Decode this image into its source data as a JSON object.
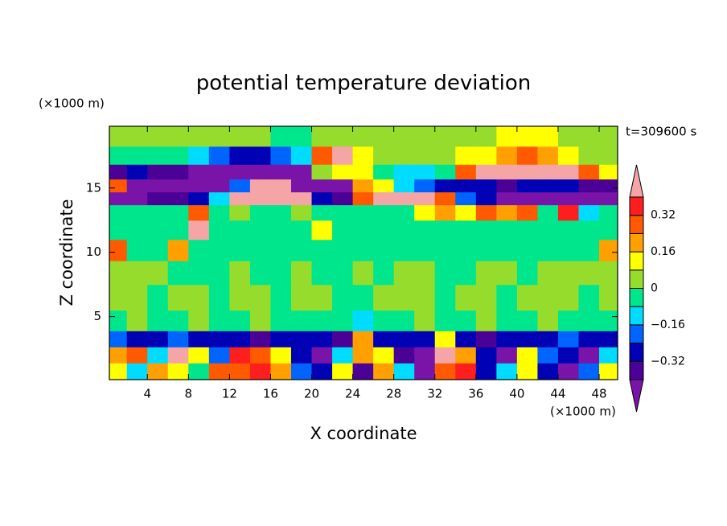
{
  "chart_data": {
    "type": "contour",
    "title": "potential temperature deviation",
    "x_label": "X coordinate",
    "y_label": "Z coordinate",
    "x_unit": "(×1000 m)",
    "y_unit": "(×1000 m)",
    "annotation": "t=309600 s",
    "xlim": [
      0.3,
      49.8
    ],
    "ylim": [
      0.1,
      19.8
    ],
    "xticks": [
      4,
      8,
      12,
      16,
      20,
      24,
      28,
      32,
      36,
      40,
      44,
      48
    ],
    "yticks": [
      5,
      10,
      15
    ],
    "x": [
      1,
      3,
      5,
      7,
      9,
      11,
      13,
      15,
      17,
      19,
      21,
      23,
      25,
      27,
      29,
      31,
      33,
      35,
      37,
      39,
      41,
      43,
      45,
      47,
      49
    ],
    "y": [
      0.8,
      2.0,
      3.3,
      4.5,
      6.5,
      8.5,
      10.2,
      11.8,
      13.2,
      14.2,
      15.2,
      16.2,
      17.5,
      19.0
    ],
    "values": [
      [
        0.1,
        -0.1,
        0.2,
        0.1,
        -0.05,
        0.3,
        0.25,
        0.35,
        0.2,
        -0.2,
        -0.3,
        0.1,
        -0.35,
        0.2,
        -0.1,
        -0.45,
        0.3,
        0.35,
        -0.3,
        -0.1,
        0.1,
        -0.3,
        -0.45,
        -0.2,
        0.1
      ],
      [
        0.2,
        0.3,
        -0.1,
        0.45,
        0.1,
        -0.2,
        0.35,
        0.3,
        0.1,
        -0.3,
        -0.45,
        -0.1,
        0.2,
        0.1,
        -0.35,
        -0.45,
        0.45,
        0.2,
        -0.3,
        -0.45,
        0.1,
        -0.2,
        -0.3,
        -0.45,
        -0.1
      ],
      [
        -0.2,
        -0.3,
        -0.25,
        -0.2,
        -0.3,
        -0.25,
        -0.3,
        -0.35,
        -0.3,
        -0.25,
        -0.3,
        -0.35,
        0.2,
        -0.3,
        -0.25,
        -0.3,
        0.1,
        -0.3,
        -0.35,
        -0.3,
        -0.25,
        -0.3,
        -0.2,
        -0.3,
        -0.25
      ],
      [
        -0.02,
        0.02,
        -0.03,
        -0.02,
        0.03,
        -0.02,
        -0.03,
        0.02,
        -0.02,
        -0.05,
        -0.03,
        -0.02,
        -0.1,
        -0.03,
        -0.02,
        0.02,
        -0.03,
        -0.02,
        0.03,
        -0.02,
        -0.03,
        0.02,
        -0.02,
        -0.03,
        -0.02
      ],
      [
        0.03,
        0.02,
        -0.02,
        0.03,
        0.02,
        -0.03,
        0.02,
        0.03,
        -0.02,
        0.02,
        0.03,
        -0.02,
        -0.03,
        0.03,
        0.02,
        0.03,
        -0.02,
        0.02,
        0.03,
        -0.02,
        0.03,
        0.02,
        0.03,
        -0.02,
        0.02
      ],
      [
        0.03,
        0.02,
        0.03,
        -0.02,
        -0.03,
        -0.02,
        0.02,
        -0.03,
        -0.02,
        0.02,
        -0.03,
        -0.02,
        0.03,
        -0.02,
        0.02,
        0.03,
        -0.02,
        -0.03,
        0.02,
        0.03,
        -0.02,
        0.02,
        0.03,
        0.02,
        0.03
      ],
      [
        0.3,
        -0.02,
        -0.03,
        0.2,
        -0.02,
        -0.03,
        -0.02,
        -0.03,
        -0.02,
        -0.03,
        -0.02,
        -0.03,
        -0.02,
        -0.03,
        -0.02,
        -0.03,
        -0.02,
        -0.03,
        -0.02,
        -0.03,
        -0.02,
        -0.03,
        -0.02,
        -0.03,
        0.2
      ],
      [
        -0.03,
        -0.02,
        -0.03,
        -0.02,
        0.45,
        -0.03,
        -0.02,
        -0.03,
        -0.02,
        -0.03,
        0.15,
        -0.03,
        -0.02,
        -0.03,
        -0.02,
        -0.03,
        -0.02,
        -0.03,
        -0.02,
        -0.03,
        -0.02,
        -0.03,
        -0.02,
        -0.03,
        -0.02
      ],
      [
        -0.03,
        -0.02,
        -0.03,
        -0.02,
        0.3,
        -0.05,
        0.02,
        -0.02,
        -0.03,
        0.02,
        -0.02,
        -0.03,
        -0.02,
        -0.03,
        -0.02,
        0.1,
        0.2,
        0.15,
        0.25,
        0.2,
        0.3,
        -0.05,
        0.35,
        -0.1,
        -0.03
      ],
      [
        -0.45,
        -0.45,
        -0.4,
        -0.35,
        -0.3,
        -0.1,
        0.45,
        0.45,
        0.45,
        0.4,
        -0.3,
        -0.35,
        0.3,
        0.45,
        0.45,
        0.45,
        0.3,
        -0.2,
        -0.3,
        -0.45,
        -0.45,
        -0.45,
        -0.45,
        -0.45,
        -0.45
      ],
      [
        0.3,
        -0.45,
        -0.45,
        -0.45,
        -0.45,
        -0.45,
        -0.2,
        0.45,
        0.45,
        -0.45,
        -0.45,
        -0.45,
        0.2,
        0.1,
        -0.1,
        -0.2,
        -0.3,
        -0.3,
        -0.3,
        -0.35,
        -0.3,
        -0.3,
        -0.3,
        -0.35,
        -0.35
      ],
      [
        -0.35,
        -0.3,
        -0.35,
        -0.35,
        -0.45,
        -0.45,
        -0.45,
        -0.45,
        -0.45,
        -0.45,
        0.05,
        0.15,
        0.1,
        -0.05,
        -0.1,
        -0.15,
        -0.05,
        0.3,
        0.45,
        0.45,
        0.45,
        0.45,
        0.45,
        0.3,
        0.1
      ],
      [
        -0.05,
        -0.03,
        -0.02,
        -0.05,
        -0.1,
        -0.2,
        -0.3,
        -0.3,
        -0.2,
        -0.1,
        0.3,
        0.45,
        0.1,
        0.03,
        0.02,
        0.03,
        0.02,
        0.1,
        0.15,
        0.2,
        0.25,
        0.2,
        0.1,
        0.03,
        0.02
      ],
      [
        0.03,
        0.02,
        0.03,
        0.02,
        0.03,
        0.02,
        0.03,
        0.02,
        -0.02,
        -0.02,
        0.03,
        0.02,
        0.03,
        0.02,
        0.03,
        0.02,
        0.03,
        0.02,
        0.03,
        0.1,
        0.12,
        0.1,
        0.03,
        0.02,
        0.03
      ]
    ],
    "colorbar": {
      "levels": [
        -0.4,
        -0.32,
        -0.24,
        -0.16,
        -0.08,
        0,
        0.08,
        0.16,
        0.24,
        0.32,
        0.4
      ],
      "colors": [
        "#7a14a8",
        "#4b0096",
        "#0000b4",
        "#0064ff",
        "#00dcff",
        "#00e68c",
        "#96dc2d",
        "#ffff00",
        "#ffa000",
        "#ff5a00",
        "#ff1e1e",
        "#f5a5a5"
      ],
      "ticks": [
        {
          "value": -0.32,
          "label": "−0.32"
        },
        {
          "value": -0.16,
          "label": "−0.16"
        },
        0,
        0.16,
        0.32
      ]
    }
  }
}
